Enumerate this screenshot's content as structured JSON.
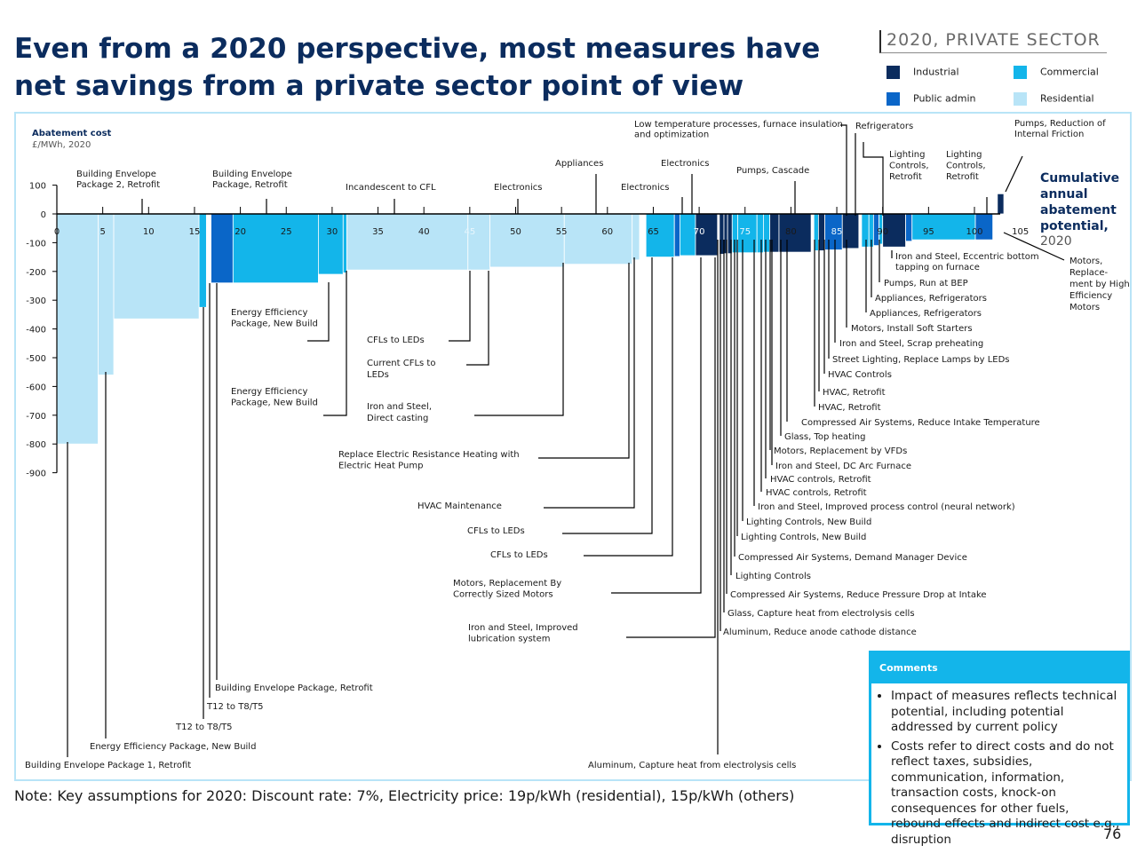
{
  "page": {
    "title": "Even from a 2020 perspective, most measures have net savings from a private sector point of view",
    "tag": "2020, PRIVATE SECTOR",
    "note": "Note: Key assumptions for 2020: Discount rate: 7%, Electricity price: 19p/kWh (residential), 15p/kWh (others)",
    "page_number": "76"
  },
  "legend": [
    {
      "name": "Industrial",
      "color": "#0b2c5e"
    },
    {
      "name": "Commercial",
      "color": "#13b5ea"
    },
    {
      "name": "Public admin",
      "color": "#0a66c8"
    },
    {
      "name": "Residential",
      "color": "#b8e4f7"
    }
  ],
  "comments": {
    "title": "Comments",
    "items": [
      "Impact of measures reflects technical potential, including potential addressed by current policy",
      "Costs refer to direct costs and do not reflect taxes, subsidies, communication, information, transaction costs, knock-on consequences for other fuels, rebound effects and indirect cost e.g., disruption"
    ]
  },
  "chart_data": {
    "type": "bar",
    "ylabel": "Abatement cost",
    "yunit": "£/MWh, 2020",
    "xlabel": "Cumulative annual abatement potential, 2020",
    "x_ticks": [
      0,
      5,
      10,
      15,
      20,
      25,
      30,
      35,
      40,
      45,
      50,
      55,
      60,
      65,
      70,
      75,
      80,
      85,
      90,
      95,
      100,
      105
    ],
    "y_ticks": [
      100,
      0,
      -100,
      -200,
      -300,
      -400,
      -500,
      -600,
      -700,
      -800,
      -900
    ],
    "xlim": [
      0,
      105
    ],
    "ylim": [
      -900,
      100
    ],
    "bars": [
      {
        "x0": 0,
        "x1": 4.5,
        "value": -800,
        "sector": "Residential"
      },
      {
        "x0": 4.5,
        "x1": 6.2,
        "value": -560,
        "sector": "Residential"
      },
      {
        "x0": 6.2,
        "x1": 15.5,
        "value": -365,
        "sector": "Residential"
      },
      {
        "x0": 15.5,
        "x1": 16.3,
        "value": -325,
        "sector": "Commercial"
      },
      {
        "x0": 16.8,
        "x1": 19.2,
        "value": -240,
        "sector": "Public admin"
      },
      {
        "x0": 19.2,
        "x1": 28.5,
        "value": -240,
        "sector": "Commercial"
      },
      {
        "x0": 28.5,
        "x1": 31.2,
        "value": -210,
        "sector": "Commercial"
      },
      {
        "x0": 31.2,
        "x1": 31.6,
        "value": -205,
        "sector": "Commercial"
      },
      {
        "x0": 31.6,
        "x1": 44.8,
        "value": -195,
        "sector": "Residential"
      },
      {
        "x0": 44.8,
        "x1": 47.2,
        "value": -195,
        "sector": "Residential"
      },
      {
        "x0": 47.2,
        "x1": 55.3,
        "value": -185,
        "sector": "Residential"
      },
      {
        "x0": 55.3,
        "x1": 62.7,
        "value": -175,
        "sector": "Residential"
      },
      {
        "x0": 62.7,
        "x1": 63.5,
        "value": -160,
        "sector": "Residential"
      },
      {
        "x0": 64.2,
        "x1": 67.3,
        "value": -150,
        "sector": "Commercial"
      },
      {
        "x0": 67.3,
        "x1": 67.9,
        "value": -148,
        "sector": "Public admin"
      },
      {
        "x0": 67.9,
        "x1": 69.6,
        "value": -145,
        "sector": "Commercial"
      },
      {
        "x0": 69.6,
        "x1": 72.0,
        "value": -145,
        "sector": "Industrial"
      },
      {
        "x0": 72.2,
        "x1": 72.7,
        "value": -140,
        "sector": "Industrial"
      },
      {
        "x0": 72.7,
        "x1": 73.1,
        "value": -138,
        "sector": "Industrial"
      },
      {
        "x0": 73.1,
        "x1": 73.6,
        "value": -138,
        "sector": "Industrial"
      },
      {
        "x0": 73.6,
        "x1": 74.2,
        "value": -135,
        "sector": "Commercial"
      },
      {
        "x0": 74.2,
        "x1": 76.3,
        "value": -135,
        "sector": "Commercial"
      },
      {
        "x0": 76.3,
        "x1": 77.0,
        "value": -135,
        "sector": "Commercial"
      },
      {
        "x0": 77.0,
        "x1": 77.7,
        "value": -133,
        "sector": "Commercial"
      },
      {
        "x0": 77.7,
        "x1": 78.7,
        "value": -133,
        "sector": "Industrial"
      },
      {
        "x0": 78.7,
        "x1": 82.2,
        "value": -133,
        "sector": "Industrial"
      },
      {
        "x0": 82.5,
        "x1": 83.0,
        "value": -128,
        "sector": "Commercial"
      },
      {
        "x0": 83.0,
        "x1": 83.7,
        "value": -128,
        "sector": "Industrial"
      },
      {
        "x0": 83.7,
        "x1": 85.6,
        "value": -125,
        "sector": "Public admin"
      },
      {
        "x0": 85.6,
        "x1": 87.4,
        "value": -120,
        "sector": "Industrial"
      },
      {
        "x0": 87.7,
        "x1": 88.5,
        "value": -115,
        "sector": "Commercial"
      },
      {
        "x0": 88.5,
        "x1": 89.0,
        "value": -115,
        "sector": "Commercial"
      },
      {
        "x0": 89.0,
        "x1": 89.6,
        "value": -110,
        "sector": "Public admin"
      },
      {
        "x0": 89.6,
        "x1": 90.0,
        "value": -105,
        "sector": "Commercial"
      },
      {
        "x0": 90.0,
        "x1": 92.5,
        "value": -115,
        "sector": "Industrial"
      },
      {
        "x0": 92.5,
        "x1": 93.2,
        "value": -95,
        "sector": "Public admin"
      },
      {
        "x0": 93.2,
        "x1": 100.1,
        "value": -90,
        "sector": "Commercial"
      },
      {
        "x0": 100.1,
        "x1": 102.0,
        "value": -90,
        "sector": "Public admin"
      },
      {
        "x0": 102.5,
        "x1": 103.2,
        "value": 70,
        "sector": "Industrial"
      }
    ],
    "annotations": [
      {
        "text": "Building Envelope Package 2, Retrofit"
      },
      {
        "text": "Building Envelope Package, Retrofit"
      },
      {
        "text": "Incandescent to CFL"
      },
      {
        "text": "Electronics"
      },
      {
        "text": "Appliances"
      },
      {
        "text": "Electronics"
      },
      {
        "text": "Electronics"
      },
      {
        "text": "Low temperature processes, furnace insulation and optimization"
      },
      {
        "text": "Pumps, Cascade"
      },
      {
        "text": "Refrigerators"
      },
      {
        "text": "Lighting Controls, Retrofit"
      },
      {
        "text": "Lighting Controls, Retrofit"
      },
      {
        "text": "Pumps, Reduction of Internal Friction"
      },
      {
        "text": "Motors, Replace-ment by High Efficiency Motors"
      },
      {
        "text": "Iron and Steel, Eccentric bottom tapping on furnace"
      },
      {
        "text": "Pumps, Run at BEP"
      },
      {
        "text": "Appliances, Refrigerators"
      },
      {
        "text": "Appliances, Refrigerators"
      },
      {
        "text": "Motors, Install Soft Starters"
      },
      {
        "text": "Iron and Steel, Scrap preheating"
      },
      {
        "text": "Street Lighting, Replace Lamps by LEDs"
      },
      {
        "text": "HVAC Controls"
      },
      {
        "text": "HVAC, Retrofit"
      },
      {
        "text": "HVAC, Retrofit"
      },
      {
        "text": "Compressed Air Systems, Reduce Intake Temperature"
      },
      {
        "text": "Glass, Top heating"
      },
      {
        "text": "Motors, Replacement by VFDs"
      },
      {
        "text": "Iron and Steel, DC Arc Furnace"
      },
      {
        "text": "HVAC controls, Retrofit"
      },
      {
        "text": "HVAC controls, Retrofit"
      },
      {
        "text": "Iron and Steel, Improved process control (neural network)"
      },
      {
        "text": "Lighting Controls, New Build"
      },
      {
        "text": "Lighting Controls, New Build"
      },
      {
        "text": "Compressed Air Systems, Demand Manager Device"
      },
      {
        "text": "Lighting Controls"
      },
      {
        "text": "Compressed Air Systems, Reduce Pressure Drop at Intake"
      },
      {
        "text": "Glass, Capture heat from electrolysis cells"
      },
      {
        "text": "Aluminum, Reduce anode cathode distance"
      },
      {
        "text": "Aluminum, Capture heat from electrolysis cells"
      },
      {
        "text": "Energy Efficiency Package, New Build"
      },
      {
        "text": "Energy Efficiency Package, New Build"
      },
      {
        "text": "CFLs to LEDs"
      },
      {
        "text": "Current CFLs to LEDs"
      },
      {
        "text": "Iron and Steel, Direct casting"
      },
      {
        "text": "Replace Electric Resistance Heating with Electric Heat Pump"
      },
      {
        "text": "HVAC Maintenance"
      },
      {
        "text": "CFLs to LEDs"
      },
      {
        "text": "CFLs to LEDs"
      },
      {
        "text": "Motors, Replacement By Correctly Sized Motors"
      },
      {
        "text": "Iron and Steel, Improved lubrication system"
      },
      {
        "text": "Building Envelope Package, Retrofit"
      },
      {
        "text": "T12 to T8/T5"
      },
      {
        "text": "T12 to T8/T5"
      },
      {
        "text": "Energy Efficiency Package, New Build"
      },
      {
        "text": "Building Envelope Package 1, Retrofit"
      }
    ]
  }
}
